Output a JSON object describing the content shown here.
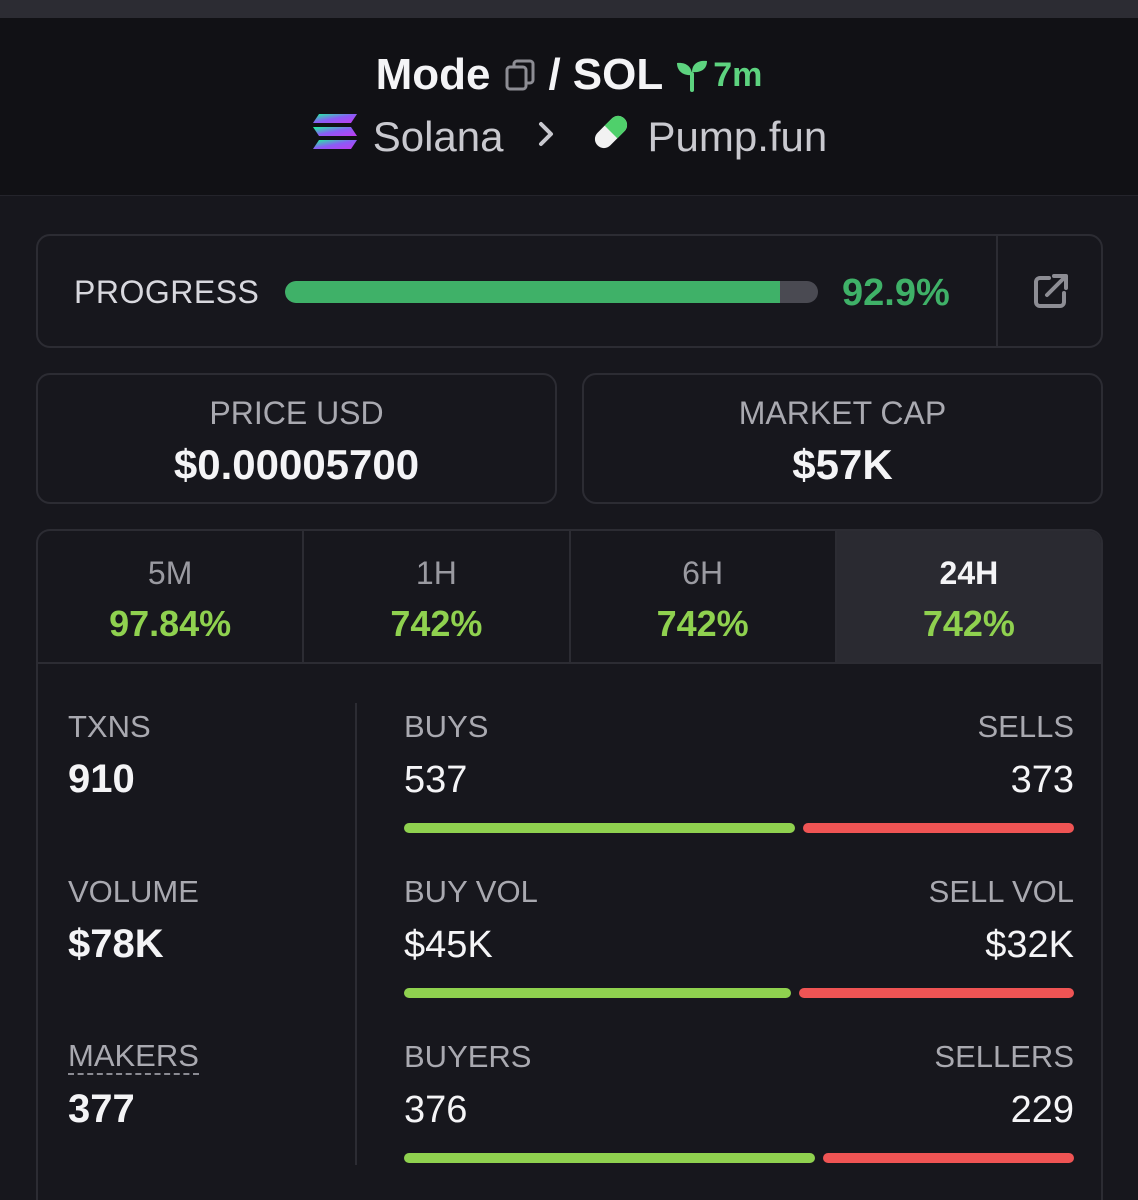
{
  "header": {
    "token": "Mode",
    "separator": "/",
    "quote": "SOL",
    "age": "7m",
    "chain": "Solana",
    "dex": "Pump.fun"
  },
  "progress": {
    "label": "PROGRESS",
    "value_text": "92.9%",
    "fraction": 0.929
  },
  "price": {
    "label": "PRICE USD",
    "value": "$0.00005700"
  },
  "market_cap": {
    "label": "MARKET CAP",
    "value": "$57K"
  },
  "tabs": [
    {
      "label": "5M",
      "value": "97.84%"
    },
    {
      "label": "1H",
      "value": "742%"
    },
    {
      "label": "6H",
      "value": "742%"
    },
    {
      "label": "24H",
      "value": "742%",
      "active": true
    }
  ],
  "stats": {
    "txns": {
      "label": "TXNS",
      "value": "910"
    },
    "volume": {
      "label": "VOLUME",
      "value": "$78K"
    },
    "makers": {
      "label": "MAKERS",
      "value": "377"
    },
    "buys_sells": {
      "left_label": "BUYS",
      "left_value": "537",
      "right_label": "SELLS",
      "right_value": "373",
      "buy": 537,
      "sell": 373
    },
    "vol_split": {
      "left_label": "BUY VOL",
      "left_value": "$45K",
      "right_label": "SELL VOL",
      "right_value": "$32K",
      "buy": 45,
      "sell": 32
    },
    "makers_split": {
      "left_label": "BUYERS",
      "left_value": "376",
      "right_label": "SELLERS",
      "right_value": "229",
      "buy": 376,
      "sell": 229
    }
  },
  "colors": {
    "accent_green": "#3fb168",
    "change_green": "#8fd14f",
    "sell_red": "#ef5454",
    "age_green": "#5dd37f"
  },
  "icons": [
    "copy-icon",
    "sprout-icon",
    "solana-logo-icon",
    "chevron-right-icon",
    "pill-icon",
    "external-link-icon"
  ]
}
